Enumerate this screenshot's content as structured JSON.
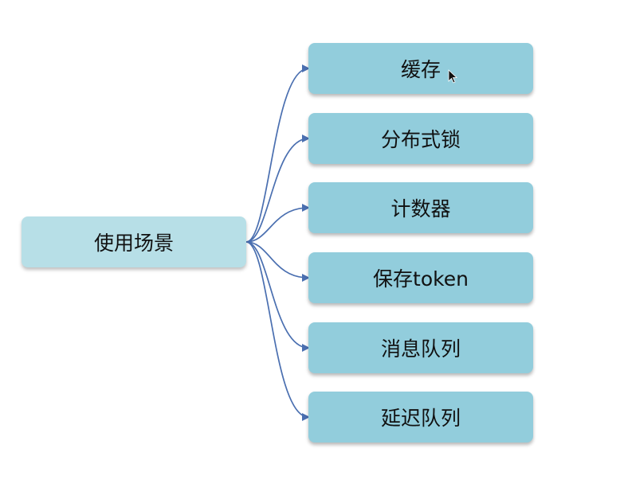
{
  "diagram": {
    "root": {
      "label": "使用场景"
    },
    "children": [
      {
        "label": "缓存"
      },
      {
        "label": "分布式锁"
      },
      {
        "label": "计数器"
      },
      {
        "label": "保存token"
      },
      {
        "label": "消息队列"
      },
      {
        "label": "延迟队列"
      }
    ],
    "colors": {
      "root_fill": "#b7dfe7",
      "child_fill": "#92cddc",
      "connector": "#4a6fb0"
    }
  }
}
